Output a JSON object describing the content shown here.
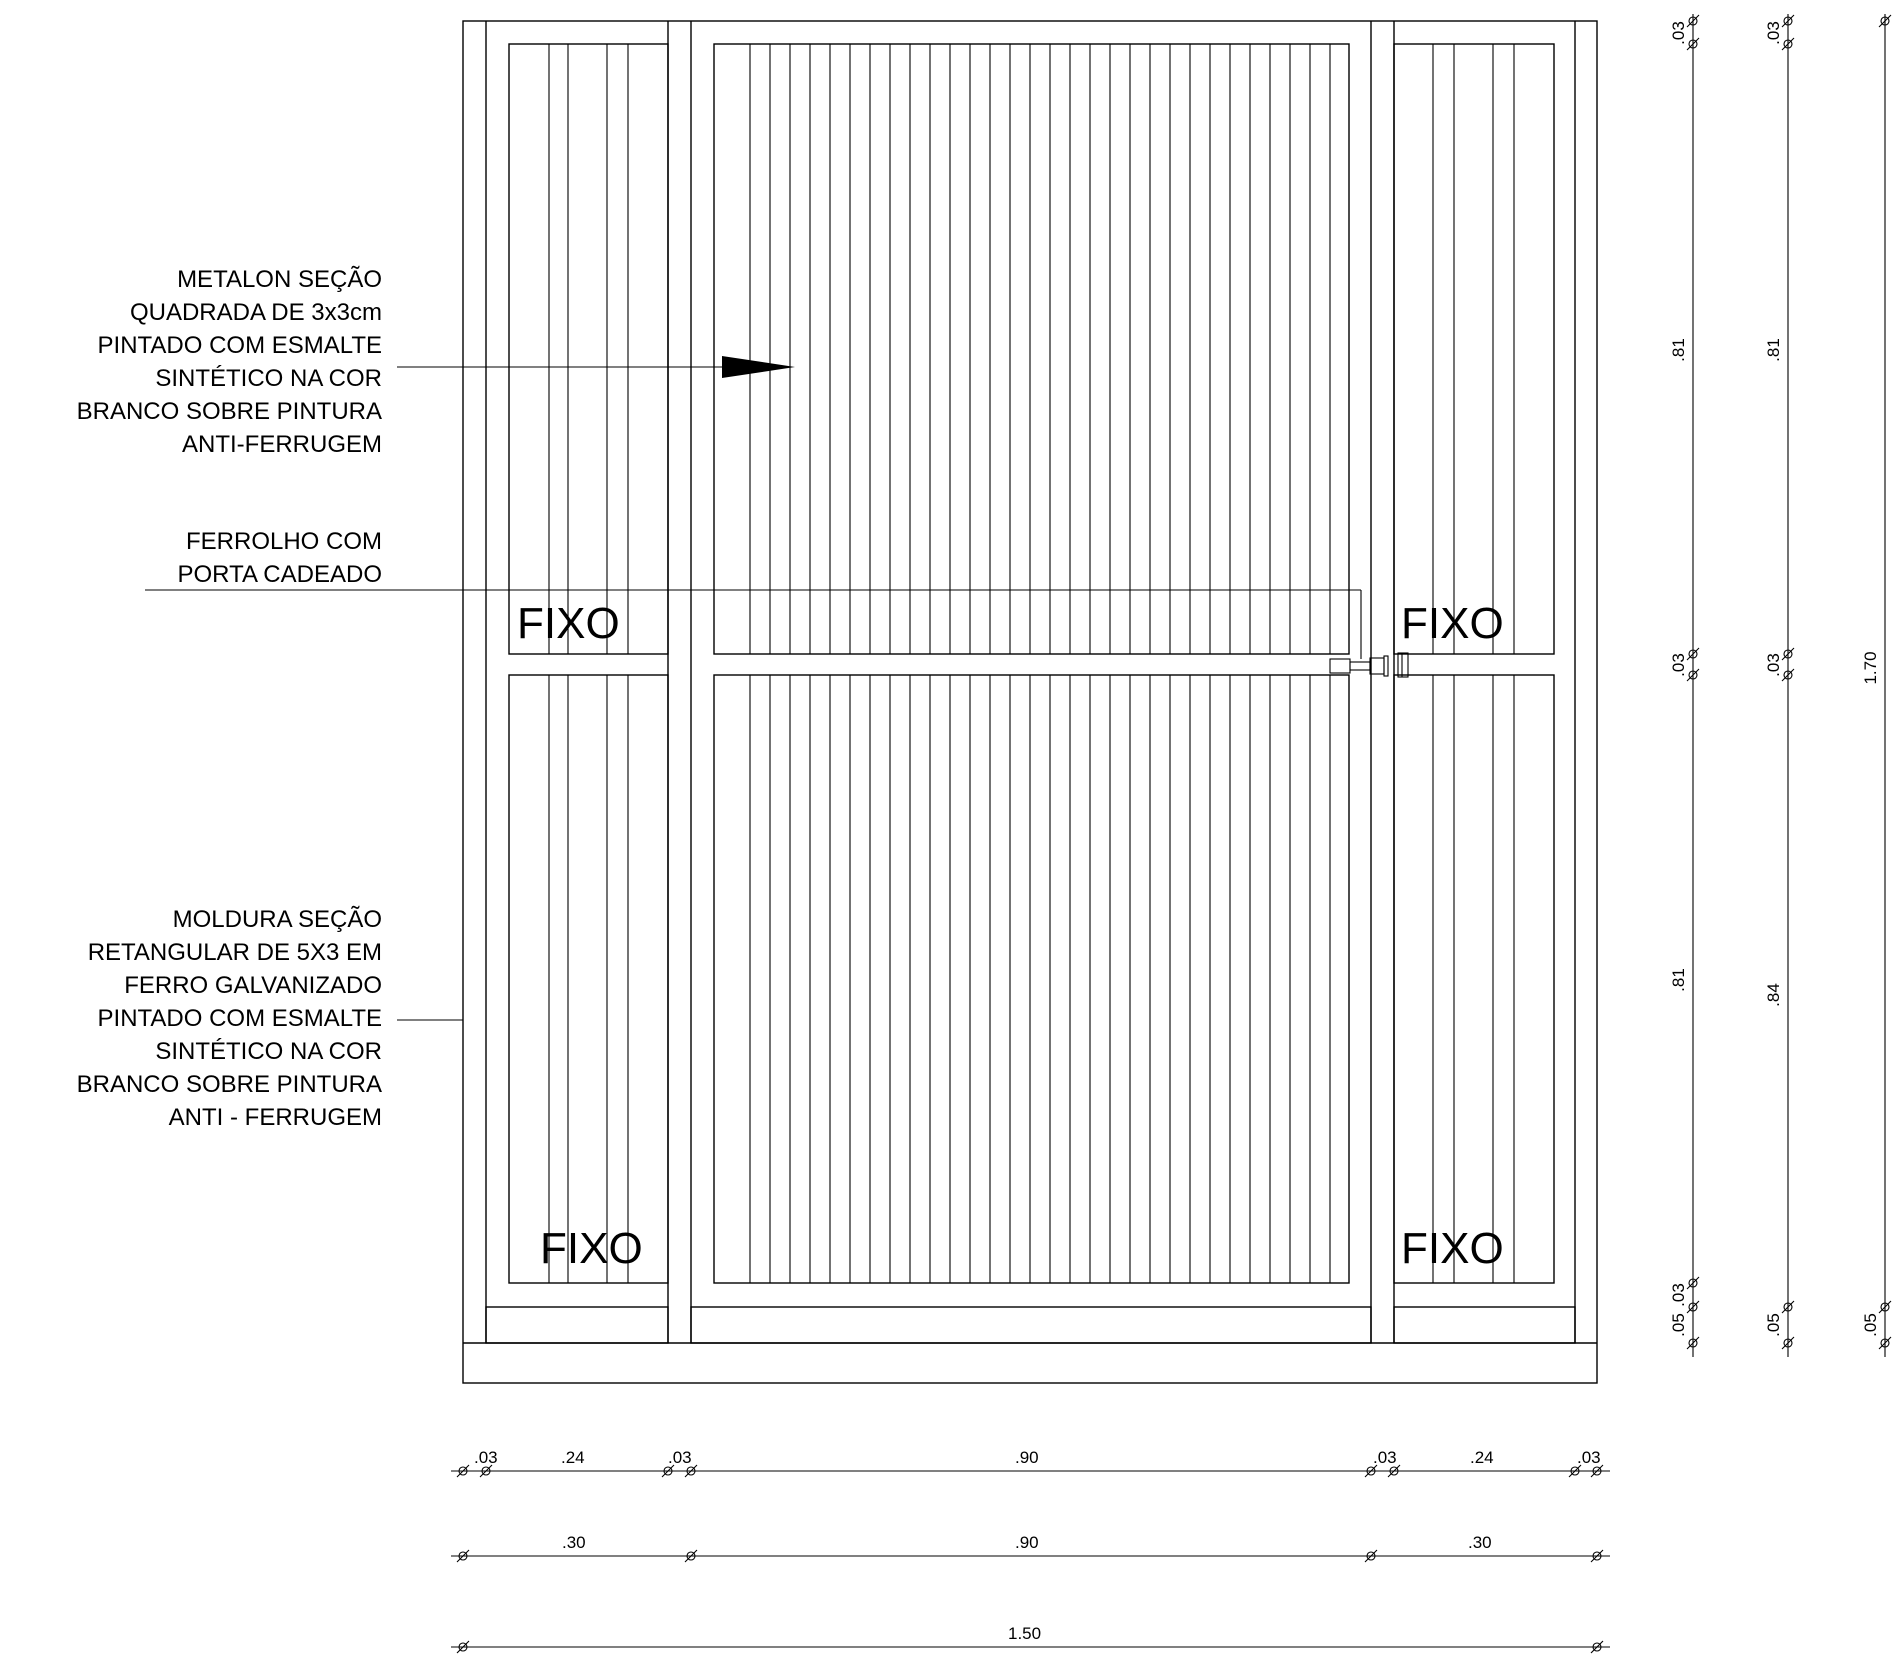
{
  "notes": {
    "metalon": [
      "METALON SEÇÃO",
      "QUADRADA DE 3x3cm",
      "PINTADO COM ESMALTE",
      "SINTÉTICO NA COR",
      "BRANCO SOBRE PINTURA",
      "ANTI-FERRUGEM"
    ],
    "ferrolho": [
      "FERROLHO COM",
      "PORTA CADEADO"
    ],
    "moldura": [
      "MOLDURA SEÇÃO",
      "RETANGULAR DE 5X3 EM",
      "FERRO GALVANIZADO",
      "PINTADO COM ESMALTE",
      "SINTÉTICO NA COR",
      "BRANCO SOBRE PINTURA",
      "ANTI - FERRUGEM"
    ]
  },
  "panel_labels": {
    "top_left": "FIXO",
    "top_right": "FIXO",
    "bottom_left": "FIXO",
    "bottom_right": "FIXO"
  },
  "dims_horizontal": {
    "row1": [
      ".03",
      ".24",
      ".03",
      ".90",
      ".03",
      ".24",
      ".03"
    ],
    "row2": [
      ".30",
      ".90",
      ".30"
    ],
    "row3": [
      "1.50"
    ]
  },
  "dims_vertical": {
    "col1": [
      ".03",
      ".81",
      ".03",
      ".81",
      ".03",
      ".05"
    ],
    "col2": [
      ".03",
      ".81",
      ".03",
      ".84",
      ".05"
    ],
    "col3": [
      "1.70",
      ".05"
    ]
  }
}
